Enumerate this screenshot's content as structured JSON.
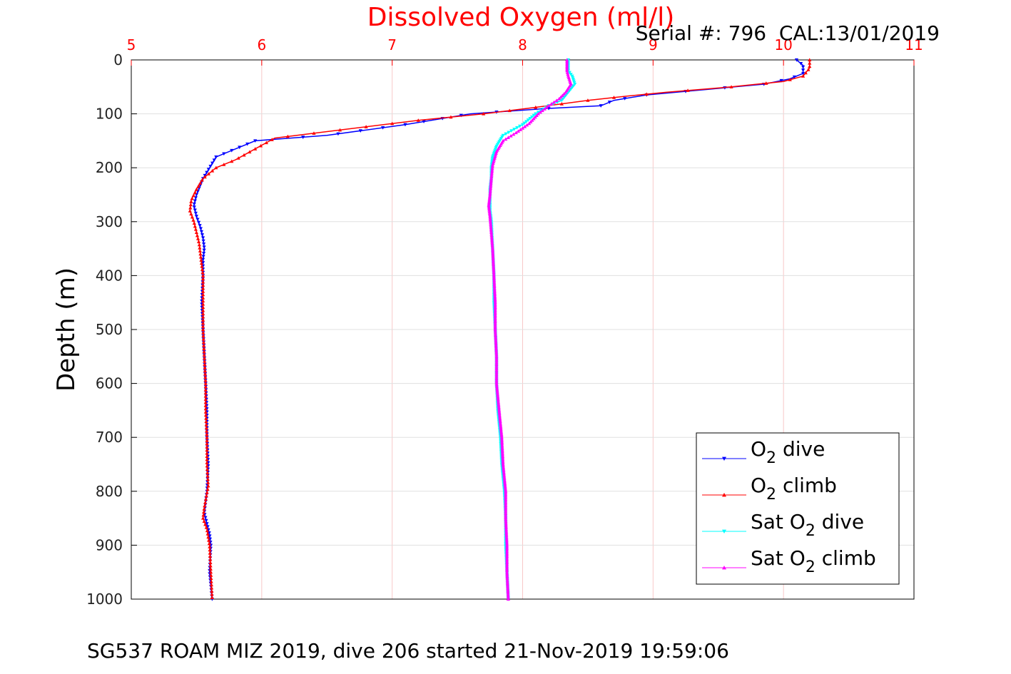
{
  "chart_data": {
    "type": "line",
    "title": "Dissolved Oxygen (ml/l)",
    "subtitle": "Serial #: 796  CAL:13/01/2019",
    "ylabel": "Depth (m)",
    "xlabel": "",
    "xlim": [
      5,
      11
    ],
    "ylim": [
      0,
      1000
    ],
    "y_reversed": true,
    "x_axis_position": "top",
    "x_ticks": [
      "5",
      "6",
      "7",
      "8",
      "9",
      "10",
      "11"
    ],
    "y_ticks": [
      "0",
      "100",
      "200",
      "300",
      "400",
      "500",
      "600",
      "700",
      "800",
      "900",
      "1000"
    ],
    "grid": true,
    "legend_position": "bottom-right",
    "colors": {
      "title": "#ff0000",
      "x_ticks": "#ff0000",
      "grid": "#e0e0e0"
    },
    "series": [
      {
        "legend_main": "O",
        "legend_sub": "2",
        "legend_rest": " dive",
        "color": "#0000ff",
        "marker": "triangle-down",
        "points": [
          [
            10.1,
            0
          ],
          [
            10.15,
            10
          ],
          [
            10.15,
            25
          ],
          [
            10.05,
            35
          ],
          [
            9.85,
            45
          ],
          [
            9.4,
            55
          ],
          [
            8.95,
            65
          ],
          [
            8.7,
            75
          ],
          [
            8.6,
            85
          ],
          [
            8.2,
            90
          ],
          [
            7.6,
            100
          ],
          [
            7.1,
            120
          ],
          [
            6.5,
            140
          ],
          [
            5.95,
            150
          ],
          [
            5.8,
            165
          ],
          [
            5.65,
            180
          ],
          [
            5.6,
            200
          ],
          [
            5.55,
            220
          ],
          [
            5.5,
            250
          ],
          [
            5.48,
            270
          ],
          [
            5.5,
            290
          ],
          [
            5.53,
            310
          ],
          [
            5.55,
            330
          ],
          [
            5.56,
            350
          ],
          [
            5.55,
            370
          ],
          [
            5.55,
            400
          ],
          [
            5.54,
            450
          ],
          [
            5.55,
            500
          ],
          [
            5.56,
            550
          ],
          [
            5.57,
            600
          ],
          [
            5.58,
            650
          ],
          [
            5.58,
            700
          ],
          [
            5.59,
            750
          ],
          [
            5.58,
            800
          ],
          [
            5.56,
            840
          ],
          [
            5.58,
            860
          ],
          [
            5.6,
            880
          ],
          [
            5.61,
            900
          ],
          [
            5.6,
            950
          ],
          [
            5.62,
            1000
          ]
        ]
      },
      {
        "legend_main": "O",
        "legend_sub": "2",
        "legend_rest": " climb",
        "color": "#ff0000",
        "marker": "triangle-up",
        "points": [
          [
            10.2,
            0
          ],
          [
            10.2,
            15
          ],
          [
            10.15,
            30
          ],
          [
            10.0,
            40
          ],
          [
            9.6,
            50
          ],
          [
            9.1,
            60
          ],
          [
            8.8,
            67
          ],
          [
            8.5,
            75
          ],
          [
            8.1,
            88
          ],
          [
            7.7,
            100
          ],
          [
            7.2,
            112
          ],
          [
            6.6,
            130
          ],
          [
            6.1,
            145
          ],
          [
            5.95,
            165
          ],
          [
            5.8,
            185
          ],
          [
            5.65,
            200
          ],
          [
            5.55,
            220
          ],
          [
            5.5,
            240
          ],
          [
            5.46,
            260
          ],
          [
            5.45,
            280
          ],
          [
            5.48,
            300
          ],
          [
            5.5,
            320
          ],
          [
            5.52,
            340
          ],
          [
            5.53,
            360
          ],
          [
            5.54,
            380
          ],
          [
            5.55,
            400
          ],
          [
            5.55,
            450
          ],
          [
            5.55,
            500
          ],
          [
            5.56,
            550
          ],
          [
            5.57,
            600
          ],
          [
            5.57,
            650
          ],
          [
            5.58,
            700
          ],
          [
            5.58,
            750
          ],
          [
            5.59,
            790
          ],
          [
            5.56,
            830
          ],
          [
            5.55,
            850
          ],
          [
            5.58,
            870
          ],
          [
            5.6,
            900
          ],
          [
            5.61,
            950
          ],
          [
            5.62,
            1000
          ]
        ]
      },
      {
        "legend_main": "Sat O",
        "legend_sub": "2",
        "legend_rest": " dive",
        "color": "#00ffff",
        "marker": "triangle-down",
        "points": [
          [
            8.35,
            0
          ],
          [
            8.35,
            20
          ],
          [
            8.38,
            30
          ],
          [
            8.4,
            45
          ],
          [
            8.35,
            60
          ],
          [
            8.3,
            75
          ],
          [
            8.2,
            85
          ],
          [
            8.1,
            100
          ],
          [
            8.0,
            120
          ],
          [
            7.85,
            140
          ],
          [
            7.8,
            160
          ],
          [
            7.77,
            180
          ],
          [
            7.76,
            200
          ],
          [
            7.76,
            220
          ],
          [
            7.75,
            240
          ],
          [
            7.75,
            260
          ],
          [
            7.75,
            280
          ],
          [
            7.76,
            300
          ],
          [
            7.77,
            350
          ],
          [
            7.78,
            400
          ],
          [
            7.78,
            450
          ],
          [
            7.79,
            500
          ],
          [
            7.8,
            550
          ],
          [
            7.8,
            600
          ],
          [
            7.81,
            650
          ],
          [
            7.83,
            700
          ],
          [
            7.84,
            750
          ],
          [
            7.86,
            800
          ],
          [
            7.87,
            850
          ],
          [
            7.87,
            900
          ],
          [
            7.88,
            950
          ],
          [
            7.89,
            1000
          ]
        ]
      },
      {
        "legend_main": "Sat O",
        "legend_sub": "2",
        "legend_rest": " climb",
        "color": "#ff00ff",
        "marker": "triangle-up",
        "points": [
          [
            8.34,
            0
          ],
          [
            8.34,
            20
          ],
          [
            8.35,
            30
          ],
          [
            8.37,
            45
          ],
          [
            8.33,
            60
          ],
          [
            8.28,
            72
          ],
          [
            8.2,
            85
          ],
          [
            8.12,
            100
          ],
          [
            8.05,
            118
          ],
          [
            7.95,
            135
          ],
          [
            7.85,
            150
          ],
          [
            7.8,
            170
          ],
          [
            7.77,
            195
          ],
          [
            7.76,
            220
          ],
          [
            7.75,
            250
          ],
          [
            7.74,
            270
          ],
          [
            7.75,
            290
          ],
          [
            7.76,
            320
          ],
          [
            7.77,
            350
          ],
          [
            7.78,
            400
          ],
          [
            7.79,
            450
          ],
          [
            7.79,
            500
          ],
          [
            7.8,
            550
          ],
          [
            7.8,
            600
          ],
          [
            7.82,
            650
          ],
          [
            7.84,
            700
          ],
          [
            7.85,
            750
          ],
          [
            7.87,
            800
          ],
          [
            7.87,
            850
          ],
          [
            7.88,
            900
          ],
          [
            7.88,
            950
          ],
          [
            7.89,
            1000
          ]
        ]
      }
    ]
  },
  "footer": {
    "text": "SG537 ROAM MIZ 2019, dive 206 started 21-Nov-2019 19:59:06"
  }
}
